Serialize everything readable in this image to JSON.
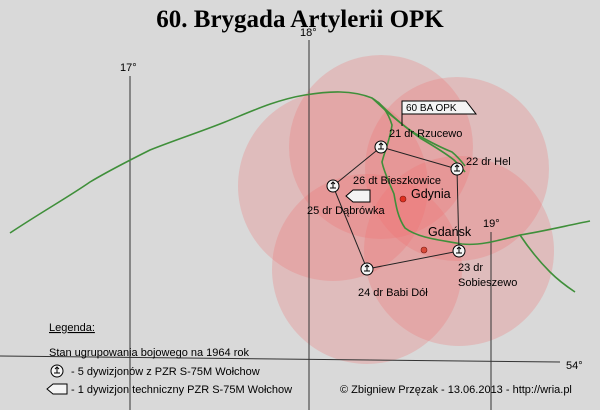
{
  "title": "60. Brygada Artylerii OPK",
  "meridians": {
    "m17": "17°",
    "m18": "18°",
    "m19": "19°"
  },
  "parallel": "54°",
  "hq_label": "60 BA OPK",
  "cities": {
    "gdynia": "Gdynia",
    "gdansk": "Gdańsk"
  },
  "units": {
    "rzucewo": "21 dr Rzucewo",
    "hel": "22 dr Hel",
    "sobieszewo_line1": "23 dr",
    "sobieszewo_line2": "Sobieszewo",
    "babi_dol": "24 dr Babi Dół",
    "dabrowka": "25 dr Dąbrówka",
    "bieszkowice": "26 dt Bieszkowice"
  },
  "legend": {
    "title": "Legenda:",
    "status": "Stan ugrupowania bojowego na 1964 rok",
    "item_sam": "- 5 dywizjonów z PZR  S-75M Wołchow",
    "item_tech": "- 1 dywizjon techniczny PZR  S-75M Wołchow"
  },
  "credit": "© Zbigniew Przęzak - 13.06.2013 - http://wria.pl",
  "colors": {
    "background": "#d9d9d9",
    "coast": "#3f8f3a",
    "range_fill": "#f07070",
    "city_dot": "#d84a3a",
    "gdynia_dot": "#e03020"
  }
}
